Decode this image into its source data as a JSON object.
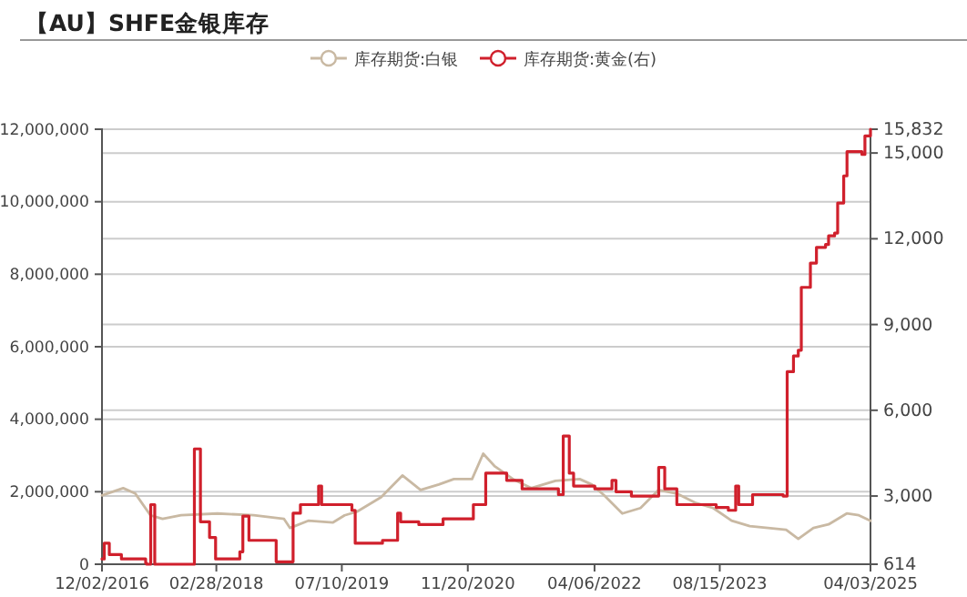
{
  "chart_data": {
    "type": "line",
    "title": "【AU】SHFE金银库存",
    "legend": "top",
    "grid": true,
    "xlim": [
      "2016-12-02",
      "2025-04-03"
    ],
    "xticks": [
      {
        "value": "2016-12-02",
        "label": "12/02/2016"
      },
      {
        "value": "2018-02-28",
        "label": "02/28/2018"
      },
      {
        "value": "2019-07-10",
        "label": "07/10/2019"
      },
      {
        "value": "2020-11-20",
        "label": "11/20/2020"
      },
      {
        "value": "2022-04-06",
        "label": "04/06/2022"
      },
      {
        "value": "2023-08-15",
        "label": "08/15/2023"
      },
      {
        "value": "2025-04-03",
        "label": "04/03/2025"
      }
    ],
    "ylim": [
      0,
      12000000
    ],
    "yticks": [
      {
        "value": 0,
        "label": "0"
      },
      {
        "value": 2000000,
        "label": "2,000,000"
      },
      {
        "value": 4000000,
        "label": "4,000,000"
      },
      {
        "value": 6000000,
        "label": "6,000,000"
      },
      {
        "value": 8000000,
        "label": "8,000,000"
      },
      {
        "value": 10000000,
        "label": "10,000,000"
      },
      {
        "value": 12000000,
        "label": "12,000,000"
      }
    ],
    "y2lim": [
      614,
      15832
    ],
    "y2ticks": [
      {
        "value": 614,
        "label": "614"
      },
      {
        "value": 3000,
        "label": "3,000"
      },
      {
        "value": 6000,
        "label": "6,000"
      },
      {
        "value": 9000,
        "label": "9,000"
      },
      {
        "value": 12000,
        "label": "12,000"
      },
      {
        "value": 15000,
        "label": "15,000"
      },
      {
        "value": 15832,
        "label": "15,832"
      }
    ],
    "series": [
      {
        "name": "库存期货:白银",
        "type": "line",
        "color": "#c9b9a3",
        "x": [
          "2016-12-02",
          "2017-02-24",
          "2017-04-13",
          "2017-06-12",
          "2017-07-30",
          "2017-10-11",
          "2018-03-04",
          "2018-07-26",
          "2018-11-23",
          "2018-12-17",
          "2019-02-27",
          "2019-06-04",
          "2019-07-21",
          "2019-09-08",
          "2019-12-13",
          "2020-03-06",
          "2020-05-17",
          "2020-07-28",
          "2020-09-26",
          "2020-12-07",
          "2021-01-20",
          "2021-03-07",
          "2021-05-18",
          "2021-07-29",
          "2021-11-02",
          "2022-02-06",
          "2022-03-26",
          "2022-05-14",
          "2022-07-25",
          "2022-10-05",
          "2022-12-16",
          "2023-02-26",
          "2023-05-09",
          "2023-07-20",
          "2023-10-01",
          "2023-12-12",
          "2024-02-22",
          "2024-05-04",
          "2024-06-21",
          "2024-08-20",
          "2024-10-19",
          "2024-12-30",
          "2025-02-16",
          "2025-04-03"
        ],
        "values": [
          1900000,
          2100000,
          1950000,
          1350000,
          1250000,
          1350000,
          1400000,
          1350000,
          1250000,
          1000000,
          1200000,
          1150000,
          1350000,
          1450000,
          1850000,
          2450000,
          2050000,
          2200000,
          2350000,
          2350000,
          3050000,
          2700000,
          2350000,
          2100000,
          2300000,
          2350000,
          2200000,
          1900000,
          1400000,
          1550000,
          2050000,
          1950000,
          1700000,
          1550000,
          1200000,
          1050000,
          1000000,
          950000,
          700000,
          1000000,
          1100000,
          1400000,
          1350000,
          1200000
        ]
      },
      {
        "name": "库存期货:黄金(右)",
        "type": "step",
        "axis": "y2",
        "color": "#d0202c",
        "x": [
          "2016-12-02",
          "2016-12-11",
          "2016-12-31",
          "2017-02-17",
          "2017-05-24",
          "2017-05-28",
          "2017-06-13",
          "2017-06-29",
          "2017-12-03",
          "2017-12-27",
          "2018-02-01",
          "2018-02-25",
          "2018-06-01",
          "2018-06-13",
          "2018-07-07",
          "2018-10-23",
          "2018-12-29",
          "2019-01-27",
          "2019-04-09",
          "2019-04-21",
          "2019-08-19",
          "2019-09-01",
          "2019-12-18",
          "2020-02-16",
          "2020-02-28",
          "2020-05-10",
          "2020-08-14",
          "2020-12-12",
          "2021-01-30",
          "2021-04-23",
          "2021-06-23",
          "2021-11-14",
          "2021-12-03",
          "2021-12-27",
          "2022-01-13",
          "2022-04-07",
          "2022-06-14",
          "2022-06-30",
          "2022-08-30",
          "2022-12-16",
          "2023-01-09",
          "2023-02-26",
          "2023-08-01",
          "2023-09-18",
          "2023-10-17",
          "2023-10-29",
          "2023-12-23",
          "2024-04-22",
          "2024-05-08",
          "2024-06-02",
          "2024-06-21",
          "2024-07-03",
          "2024-08-08",
          "2024-09-01",
          "2024-10-07",
          "2024-10-19",
          "2024-11-12",
          "2024-11-24",
          "2024-12-18",
          "2024-12-31",
          "2025-02-28",
          "2025-03-12",
          "2025-04-03"
        ],
        "values": [
          800,
          1350,
          950,
          800,
          650,
          614,
          2700,
          614,
          4650,
          2100,
          1550,
          800,
          1050,
          2300,
          1450,
          700,
          2400,
          2700,
          3350,
          2700,
          2500,
          1350,
          1450,
          2400,
          2100,
          2000,
          2200,
          2700,
          3800,
          3550,
          3250,
          3050,
          5100,
          3800,
          3350,
          3250,
          3550,
          3150,
          3000,
          4000,
          3250,
          2700,
          2600,
          2500,
          3350,
          2700,
          3050,
          3000,
          7350,
          7900,
          8100,
          10300,
          11150,
          11700,
          11800,
          12100,
          12200,
          13250,
          14200,
          15050,
          14950,
          15600,
          15832
        ]
      }
    ]
  }
}
